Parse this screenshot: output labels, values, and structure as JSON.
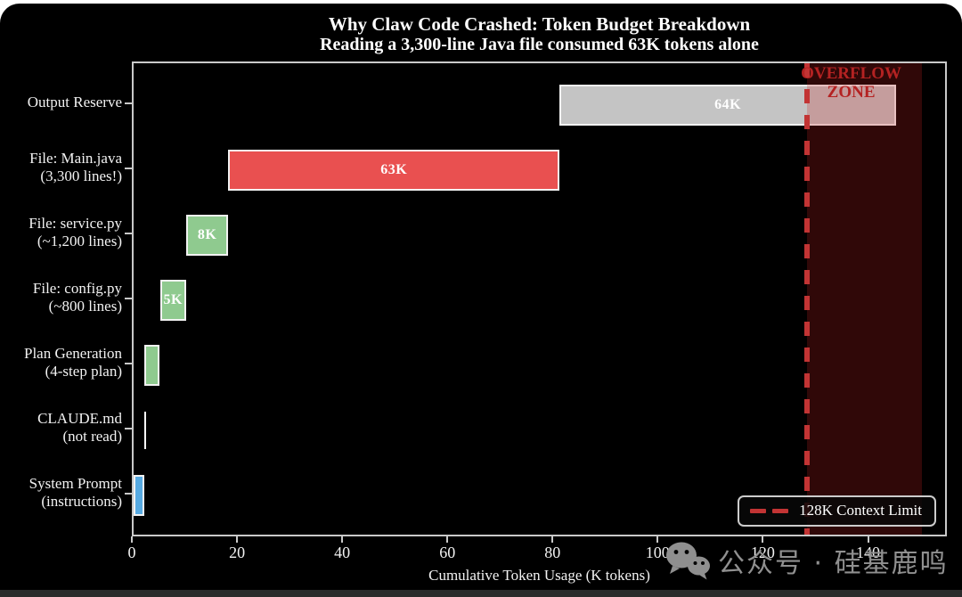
{
  "chart_data": {
    "type": "bar",
    "orientation": "horizontal-waterfall",
    "title": "Why Claw Code Crashed: Token Budget Breakdown",
    "subtitle": "Reading a 3,300-line Java file consumed 63K tokens alone",
    "xlabel": "Cumulative Token Usage (K tokens)",
    "xlim": [
      0,
      155
    ],
    "xticks": [
      0,
      20,
      40,
      60,
      80,
      100,
      120,
      140
    ],
    "grid": false,
    "legend_position": "lower right",
    "categories": [
      {
        "id": "output-reserve",
        "lines": [
          "Output Reserve"
        ]
      },
      {
        "id": "file-main-java",
        "lines": [
          "File: Main.java",
          "(3,300 lines!)"
        ]
      },
      {
        "id": "file-service-py",
        "lines": [
          "File: service.py",
          "(~1,200 lines)"
        ]
      },
      {
        "id": "file-config-py",
        "lines": [
          "File: config.py",
          "(~800 lines)"
        ]
      },
      {
        "id": "plan-generation",
        "lines": [
          "Plan Generation",
          "(4-step plan)"
        ]
      },
      {
        "id": "claude-md",
        "lines": [
          "CLAUDE.md",
          "(not read)"
        ]
      },
      {
        "id": "system-prompt",
        "lines": [
          "System Prompt",
          "(instructions)"
        ]
      }
    ],
    "bars": [
      {
        "category": "output-reserve",
        "start": 81,
        "value": 64,
        "label": "64K",
        "color": "#c4c4c4"
      },
      {
        "category": "file-main-java",
        "start": 18,
        "value": 63,
        "label": "63K",
        "color": "#e95050"
      },
      {
        "category": "file-service-py",
        "start": 10,
        "value": 8,
        "label": "8K",
        "color": "#8fca8f"
      },
      {
        "category": "file-config-py",
        "start": 5,
        "value": 5,
        "label": "5K",
        "color": "#8fca8f"
      },
      {
        "category": "plan-generation",
        "start": 2,
        "value": 3,
        "label": "",
        "color": "#8fca8f"
      },
      {
        "category": "claude-md",
        "start": 2,
        "value": 0,
        "label": "",
        "color": "#ffffff"
      },
      {
        "category": "system-prompt",
        "start": 0,
        "value": 2,
        "label": "",
        "color": "#57aae2"
      }
    ],
    "context_limit": {
      "value": 128,
      "legend_label": "128K Context Limit",
      "color": "#c23434"
    },
    "overflow_zone": {
      "from": 128,
      "to": 150,
      "label": [
        "OVERFLOW",
        "ZONE"
      ],
      "text_color": "#b42222"
    }
  },
  "watermark": {
    "icon": "wechat-icon",
    "text": "公众号 · 硅基鹿鸣"
  }
}
